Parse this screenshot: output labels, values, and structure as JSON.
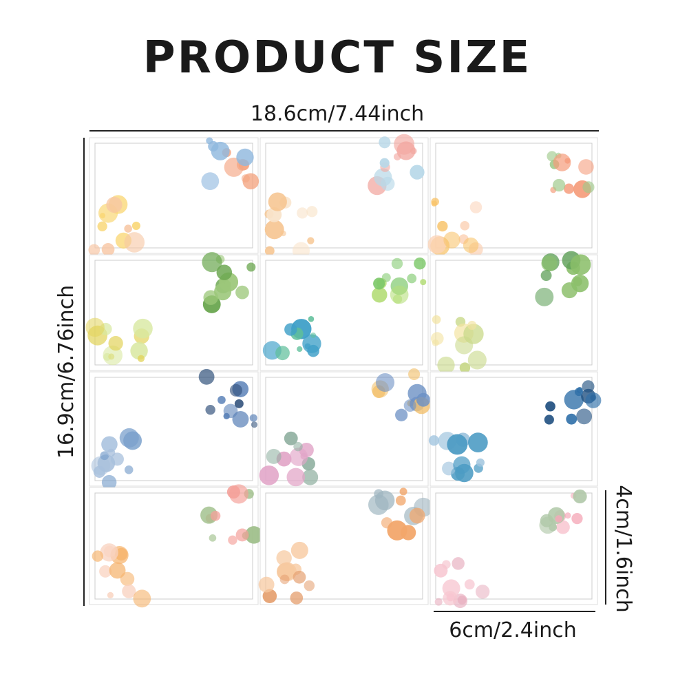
{
  "header": {
    "title": "PRODUCT SIZE"
  },
  "dimensions": {
    "width": "18.6cm/7.44inch",
    "height": "16.9cm/6.76inch",
    "label_height": "4cm/1.6inch",
    "label_width": "6cm/2.4inch"
  }
}
